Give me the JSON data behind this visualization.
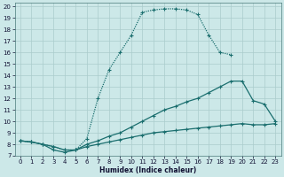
{
  "xlabel": "Humidex (Indice chaleur)",
  "bg_color": "#cce8e8",
  "grid_color": "#aacccc",
  "line_color": "#1a6e6e",
  "xlim": [
    -0.5,
    23.5
  ],
  "ylim": [
    7,
    20.3
  ],
  "xticks": [
    0,
    1,
    2,
    3,
    4,
    5,
    6,
    7,
    8,
    9,
    10,
    11,
    12,
    13,
    14,
    15,
    16,
    17,
    18,
    19,
    20,
    21,
    22,
    23
  ],
  "yticks": [
    7,
    8,
    9,
    10,
    11,
    12,
    13,
    14,
    15,
    16,
    17,
    18,
    19,
    20
  ],
  "lines": [
    {
      "x": [
        0,
        1,
        2,
        3,
        4,
        5,
        6,
        7,
        8,
        9,
        10,
        11,
        12,
        13,
        14,
        15,
        16,
        17,
        18,
        19
      ],
      "y": [
        8.3,
        8.2,
        8.0,
        7.8,
        7.5,
        7.5,
        8.5,
        12.0,
        14.5,
        16.0,
        17.5,
        19.5,
        19.7,
        19.8,
        19.8,
        19.7,
        19.3,
        17.5,
        16.0,
        15.8
      ],
      "linestyle": "dotted"
    },
    {
      "x": [
        0,
        1,
        2,
        3,
        4,
        5,
        6,
        7,
        8,
        9,
        10,
        11,
        12,
        13,
        14,
        15,
        16,
        17,
        18,
        19,
        20,
        21,
        22,
        23
      ],
      "y": [
        8.3,
        8.2,
        8.0,
        7.8,
        7.5,
        7.5,
        8.0,
        8.3,
        8.7,
        9.0,
        9.5,
        10.0,
        10.5,
        11.0,
        11.3,
        11.7,
        12.0,
        12.5,
        13.0,
        13.5,
        13.5,
        11.8,
        11.5,
        10.0
      ],
      "linestyle": "solid"
    },
    {
      "x": [
        0,
        1,
        2,
        3,
        4,
        5,
        6,
        7,
        8,
        9,
        10,
        11,
        12,
        13,
        14,
        15,
        16,
        17,
        18,
        19,
        20,
        21,
        22,
        23
      ],
      "y": [
        8.3,
        8.2,
        8.0,
        7.5,
        7.3,
        7.5,
        7.8,
        8.0,
        8.2,
        8.4,
        8.6,
        8.8,
        9.0,
        9.1,
        9.2,
        9.3,
        9.4,
        9.5,
        9.6,
        9.7,
        9.8,
        9.7,
        9.7,
        9.8
      ],
      "linestyle": "solid"
    }
  ]
}
